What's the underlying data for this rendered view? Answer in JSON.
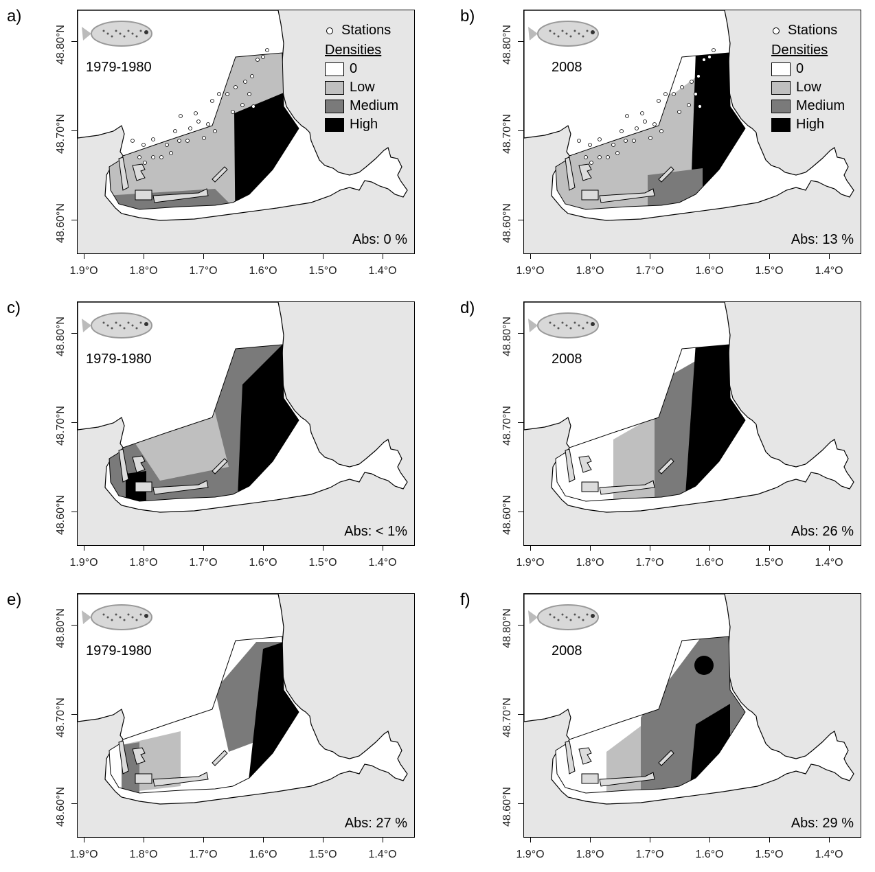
{
  "x_axis": {
    "ticks": [
      "1.9°O",
      "1.8°O",
      "1.7°O",
      "1.6°O",
      "1.5°O",
      "1.4°O"
    ]
  },
  "y_axis": {
    "ticks": [
      "48.80°N",
      "48.70°N",
      "48.60°N"
    ]
  },
  "legend": {
    "stations_label": "Stations",
    "title": "Densities",
    "classes": [
      {
        "label": "0",
        "color": "#ffffff"
      },
      {
        "label": "Low",
        "color": "#bfbfbf"
      },
      {
        "label": "Medium",
        "color": "#7a7a7a"
      },
      {
        "label": "High",
        "color": "#000000"
      }
    ]
  },
  "colors": {
    "land": "#e6e6e6",
    "water": "#ffffff",
    "low": "#bfbfbf",
    "medium": "#7a7a7a",
    "high": "#000000"
  },
  "panels": [
    {
      "letter": "a)",
      "period": "1979-1980",
      "abs": "Abs: 0 %",
      "fish_icon": "fish-icon",
      "show_legend": true,
      "show_stations": true
    },
    {
      "letter": "b)",
      "period": "2008",
      "abs": "Abs: 13 %",
      "fish_icon": "fish-icon",
      "show_legend": true,
      "show_stations": true
    },
    {
      "letter": "c)",
      "period": "1979-1980",
      "abs": "Abs: < 1%",
      "fish_icon": "fish-icon",
      "show_legend": false,
      "show_stations": false
    },
    {
      "letter": "d)",
      "period": "2008",
      "abs": "Abs: 26 %",
      "fish_icon": "fish-icon",
      "show_legend": false,
      "show_stations": false
    },
    {
      "letter": "e)",
      "period": "1979-1980",
      "abs": "Abs: 27 %",
      "fish_icon": "fish-icon",
      "show_legend": false,
      "show_stations": false
    },
    {
      "letter": "f)",
      "period": "2008",
      "abs": "Abs: 29 %",
      "fish_icon": "fish-icon",
      "show_legend": false,
      "show_stations": false
    }
  ]
}
